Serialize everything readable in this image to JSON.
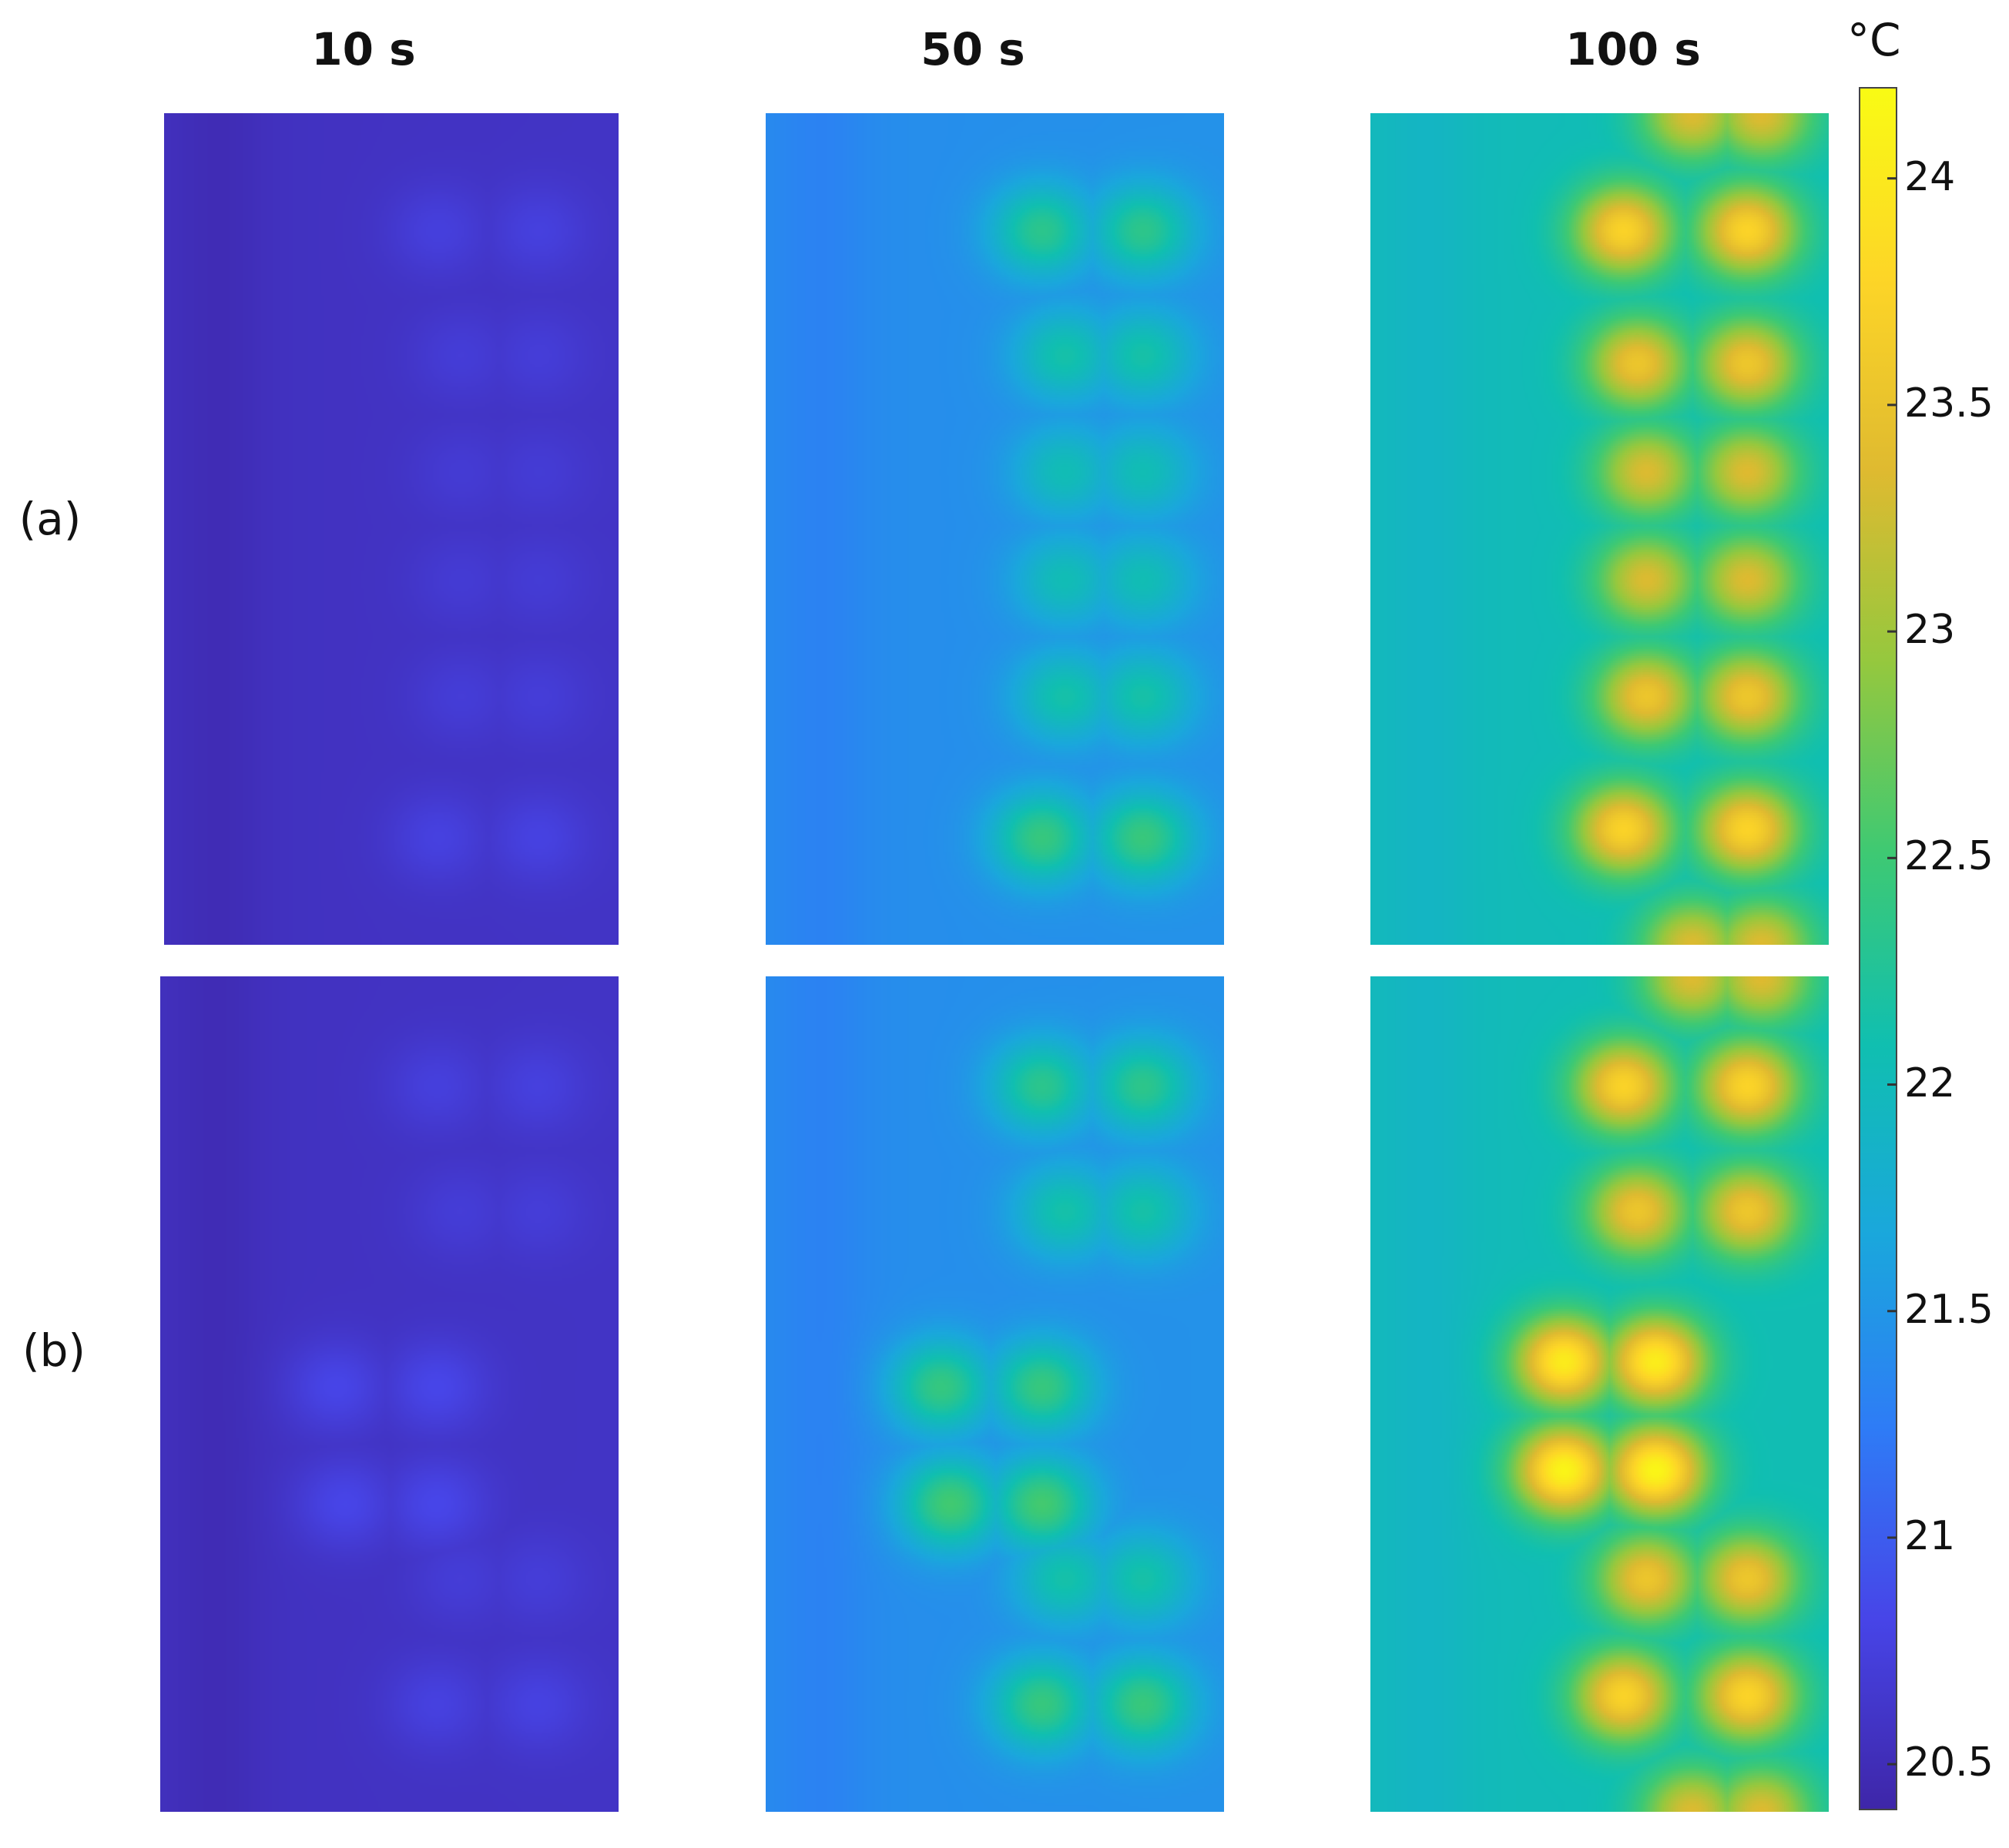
{
  "columns": [
    {
      "id": "t10",
      "label": "10 s",
      "time_s": 10
    },
    {
      "id": "t50",
      "label": "50 s",
      "time_s": 50
    },
    {
      "id": "t100",
      "label": "100 s",
      "time_s": 100
    }
  ],
  "rows": [
    {
      "id": "a",
      "label": "(a)"
    },
    {
      "id": "b",
      "label": "(b)"
    }
  ],
  "colorbar": {
    "unit": "°C",
    "min": 20.4,
    "max": 24.2,
    "ticks": [
      {
        "value": 24,
        "label": "24"
      },
      {
        "value": 23.5,
        "label": "23.5"
      },
      {
        "value": 23,
        "label": "23"
      },
      {
        "value": 22.5,
        "label": "22.5"
      },
      {
        "value": 22,
        "label": "22"
      },
      {
        "value": 21.5,
        "label": "21.5"
      },
      {
        "value": 21,
        "label": "21"
      },
      {
        "value": 20.5,
        "label": "20.5"
      }
    ],
    "colormap": "parula",
    "colors": [
      "#3e26a8",
      "#4745e8",
      "#2e7cf6",
      "#1aa7dc",
      "#10bfb0",
      "#3ec973",
      "#95c83e",
      "#dfba30",
      "#fdd527",
      "#f9fb14"
    ]
  },
  "chart_data": {
    "type": "heatmap",
    "title": "",
    "xlabel": "",
    "ylabel": "",
    "value_unit": "°C",
    "value_range": [
      20.4,
      24.2
    ],
    "panels": [
      {
        "row": "(a)",
        "column": "10 s",
        "base_temp": 20.55,
        "left_strip_temp": 20.48,
        "hot_spots": [
          {
            "row_pos": 0.14,
            "cols": [
              0.6,
              0.82
            ],
            "peak_temp": 20.72
          },
          {
            "row_pos": 0.29,
            "cols": [
              0.65,
              0.82
            ],
            "peak_temp": 20.68
          },
          {
            "row_pos": 0.43,
            "cols": [
              0.65,
              0.82
            ],
            "peak_temp": 20.66
          },
          {
            "row_pos": 0.56,
            "cols": [
              0.65,
              0.82
            ],
            "peak_temp": 20.66
          },
          {
            "row_pos": 0.7,
            "cols": [
              0.65,
              0.82
            ],
            "peak_temp": 20.68
          },
          {
            "row_pos": 0.87,
            "cols": [
              0.6,
              0.82
            ],
            "peak_temp": 20.74
          }
        ]
      },
      {
        "row": "(a)",
        "column": "50 s",
        "base_temp": 21.4,
        "left_strip_temp": 21.3,
        "hot_spots": [
          {
            "row_pos": 0.14,
            "cols": [
              0.6,
              0.82
            ],
            "peak_temp": 22.3
          },
          {
            "row_pos": 0.29,
            "cols": [
              0.65,
              0.82
            ],
            "peak_temp": 22.1
          },
          {
            "row_pos": 0.43,
            "cols": [
              0.65,
              0.82
            ],
            "peak_temp": 22.0
          },
          {
            "row_pos": 0.56,
            "cols": [
              0.65,
              0.82
            ],
            "peak_temp": 22.0
          },
          {
            "row_pos": 0.7,
            "cols": [
              0.65,
              0.82
            ],
            "peak_temp": 22.1
          },
          {
            "row_pos": 0.87,
            "cols": [
              0.6,
              0.82
            ],
            "peak_temp": 22.4
          }
        ]
      },
      {
        "row": "(a)",
        "column": "100 s",
        "base_temp": 22.0,
        "left_strip_temp": 21.9,
        "hot_spots": [
          {
            "row_pos": 0.0,
            "cols": [
              0.7,
              0.85
            ],
            "peak_temp": 23.3
          },
          {
            "row_pos": 0.14,
            "cols": [
              0.55,
              0.82
            ],
            "peak_temp": 23.7
          },
          {
            "row_pos": 0.3,
            "cols": [
              0.58,
              0.82
            ],
            "peak_temp": 23.5
          },
          {
            "row_pos": 0.43,
            "cols": [
              0.6,
              0.82
            ],
            "peak_temp": 23.3
          },
          {
            "row_pos": 0.56,
            "cols": [
              0.6,
              0.82
            ],
            "peak_temp": 23.3
          },
          {
            "row_pos": 0.7,
            "cols": [
              0.6,
              0.82
            ],
            "peak_temp": 23.5
          },
          {
            "row_pos": 0.86,
            "cols": [
              0.55,
              0.82
            ],
            "peak_temp": 23.7
          },
          {
            "row_pos": 1.0,
            "cols": [
              0.7,
              0.85
            ],
            "peak_temp": 23.3
          }
        ]
      },
      {
        "row": "(b)",
        "column": "10 s",
        "base_temp": 20.55,
        "left_strip_temp": 20.48,
        "hot_spots": [
          {
            "row_pos": 0.13,
            "cols": [
              0.6,
              0.82
            ],
            "peak_temp": 20.72
          },
          {
            "row_pos": 0.28,
            "cols": [
              0.65,
              0.82
            ],
            "peak_temp": 20.68
          },
          {
            "row_pos": 0.49,
            "cols": [
              0.38,
              0.6
            ],
            "peak_temp": 20.8
          },
          {
            "row_pos": 0.63,
            "cols": [
              0.4,
              0.6
            ],
            "peak_temp": 20.8
          },
          {
            "row_pos": 0.72,
            "cols": [
              0.65,
              0.82
            ],
            "peak_temp": 20.68
          },
          {
            "row_pos": 0.87,
            "cols": [
              0.6,
              0.82
            ],
            "peak_temp": 20.74
          }
        ]
      },
      {
        "row": "(b)",
        "column": "50 s",
        "base_temp": 21.4,
        "left_strip_temp": 21.3,
        "hot_spots": [
          {
            "row_pos": 0.13,
            "cols": [
              0.6,
              0.82
            ],
            "peak_temp": 22.3
          },
          {
            "row_pos": 0.28,
            "cols": [
              0.65,
              0.82
            ],
            "peak_temp": 22.1
          },
          {
            "row_pos": 0.49,
            "cols": [
              0.38,
              0.6
            ],
            "peak_temp": 22.4
          },
          {
            "row_pos": 0.63,
            "cols": [
              0.4,
              0.6
            ],
            "peak_temp": 22.5
          },
          {
            "row_pos": 0.72,
            "cols": [
              0.65,
              0.82
            ],
            "peak_temp": 22.1
          },
          {
            "row_pos": 0.87,
            "cols": [
              0.6,
              0.82
            ],
            "peak_temp": 22.4
          }
        ]
      },
      {
        "row": "(b)",
        "column": "100 s",
        "base_temp": 22.0,
        "left_strip_temp": 21.9,
        "hot_spots": [
          {
            "row_pos": 0.0,
            "cols": [
              0.7,
              0.85
            ],
            "peak_temp": 23.3
          },
          {
            "row_pos": 0.13,
            "cols": [
              0.55,
              0.82
            ],
            "peak_temp": 23.7
          },
          {
            "row_pos": 0.28,
            "cols": [
              0.58,
              0.82
            ],
            "peak_temp": 23.5
          },
          {
            "row_pos": 0.46,
            "cols": [
              0.42,
              0.62
            ],
            "peak_temp": 24.0
          },
          {
            "row_pos": 0.59,
            "cols": [
              0.42,
              0.62
            ],
            "peak_temp": 24.1
          },
          {
            "row_pos": 0.72,
            "cols": [
              0.6,
              0.82
            ],
            "peak_temp": 23.5
          },
          {
            "row_pos": 0.86,
            "cols": [
              0.55,
              0.82
            ],
            "peak_temp": 23.7
          },
          {
            "row_pos": 1.0,
            "cols": [
              0.7,
              0.85
            ],
            "peak_temp": 23.3
          }
        ]
      }
    ]
  }
}
